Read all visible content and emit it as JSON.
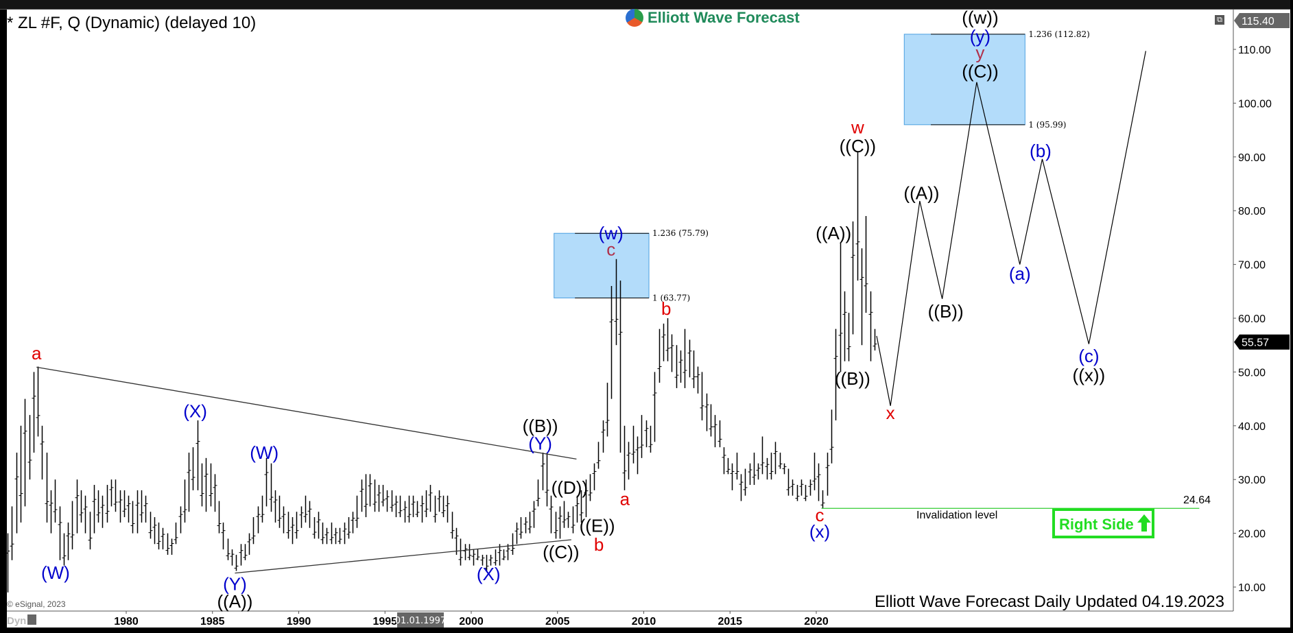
{
  "header": {
    "title": "* ZL #F, Q (Dynamic) (delayed 10)",
    "logo_text": "Elliott Wave Forecast"
  },
  "footer": {
    "copyright": "© eSignal, 2023",
    "dyn_label": "Dyn",
    "updated": "Elliott Wave Forecast Daily Updated 04.19.2023",
    "date_cursor": "01.01.1997"
  },
  "price_tags": {
    "top": "115.40",
    "last": "55.57"
  },
  "invalidation": {
    "label": "Invalidation level",
    "value_label": "24.64"
  },
  "right_side": {
    "label": "Right Side",
    "icon": "up-arrow-icon",
    "color": "#22dd22"
  },
  "colors": {
    "red": "#e00000",
    "blue": "#0000cc",
    "black": "#000000",
    "darkred": "#b0304a",
    "box": "#b3dcfa",
    "invalidation": "#33cc33"
  },
  "chart_data": {
    "type": "bar",
    "title": "* ZL #F, Q (Dynamic) (delayed 10)",
    "xlim": [
      1973,
      2042.5
    ],
    "ylim": [
      5.5,
      116.5
    ],
    "x_ticks": [
      "1980",
      "1985",
      "1990",
      "1995",
      "2000",
      "2005",
      "2010",
      "2015",
      "2020"
    ],
    "y_ticks": [
      "10.00",
      "20.00",
      "30.00",
      "40.00",
      "50.00",
      "60.00",
      "70.00",
      "80.00",
      "90.00",
      "100.00",
      "110.00"
    ],
    "quarterly_low_high": {
      "1973": [
        [
          9,
          20
        ],
        [
          15,
          25
        ],
        [
          20,
          35
        ],
        [
          22,
          40
        ]
      ],
      "1974": [
        [
          25,
          45
        ],
        [
          30,
          42
        ],
        [
          35,
          50
        ],
        [
          38,
          51
        ]
      ],
      "1975": [
        [
          30,
          40
        ],
        [
          22,
          35
        ],
        [
          20,
          28
        ],
        [
          22,
          30
        ]
      ],
      "1976": [
        [
          15,
          25
        ],
        [
          14,
          20
        ],
        [
          15,
          22
        ],
        [
          17,
          26
        ]
      ],
      "1977": [
        [
          20,
          30
        ],
        [
          22,
          28
        ],
        [
          20,
          27
        ],
        [
          17,
          24
        ]
      ],
      "1978": [
        [
          20,
          29
        ],
        [
          22,
          28
        ],
        [
          21,
          27
        ],
        [
          22,
          29
        ]
      ],
      "1979": [
        [
          25,
          30
        ],
        [
          24,
          30
        ],
        [
          22,
          28
        ],
        [
          23,
          28
        ]
      ],
      "1980": [
        [
          22,
          27
        ],
        [
          20,
          26
        ],
        [
          20,
          28
        ],
        [
          22,
          28
        ]
      ],
      "1981": [
        [
          22,
          27
        ],
        [
          19,
          24
        ],
        [
          18,
          23
        ],
        [
          17,
          22
        ]
      ],
      "1982": [
        [
          17,
          21
        ],
        [
          16,
          20
        ],
        [
          16,
          19
        ],
        [
          18,
          22
        ]
      ],
      "1983": [
        [
          20,
          25
        ],
        [
          22,
          30
        ],
        [
          24,
          35
        ],
        [
          28,
          36
        ]
      ],
      "1984": [
        [
          28,
          41
        ],
        [
          25,
          33
        ],
        [
          24,
          34
        ],
        [
          25,
          33
        ]
      ],
      "1985": [
        [
          24,
          31
        ],
        [
          20,
          26
        ],
        [
          17,
          22
        ],
        [
          15,
          19
        ]
      ],
      "1986": [
        [
          14,
          17
        ],
        [
          13,
          16
        ],
        [
          14,
          18
        ],
        [
          15,
          18
        ]
      ],
      "1987": [
        [
          16,
          20
        ],
        [
          18,
          23
        ],
        [
          20,
          25
        ],
        [
          22,
          27
        ]
      ],
      "1988": [
        [
          25,
          34
        ],
        [
          24,
          33
        ],
        [
          22,
          28
        ],
        [
          21,
          27
        ]
      ],
      "1989": [
        [
          20,
          25
        ],
        [
          19,
          24
        ],
        [
          18,
          23
        ],
        [
          19,
          24
        ]
      ],
      "1990": [
        [
          21,
          25
        ],
        [
          22,
          27
        ],
        [
          21,
          26
        ],
        [
          19,
          23
        ]
      ],
      "1991": [
        [
          19,
          24
        ],
        [
          18,
          22
        ],
        [
          18,
          21
        ],
        [
          18,
          22
        ]
      ],
      "1992": [
        [
          18,
          21
        ],
        [
          18,
          21
        ],
        [
          18,
          22
        ],
        [
          19,
          23
        ]
      ],
      "1993": [
        [
          20,
          24
        ],
        [
          21,
          27
        ],
        [
          24,
          30
        ],
        [
          23,
          31
        ]
      ],
      "1994": [
        [
          25,
          31
        ],
        [
          24,
          30
        ],
        [
          24,
          29
        ],
        [
          25,
          29
        ]
      ],
      "1995": [
        [
          24,
          28
        ],
        [
          24,
          28
        ],
        [
          23,
          27
        ],
        [
          23,
          27
        ]
      ],
      "1996": [
        [
          22,
          26
        ],
        [
          22,
          27
        ],
        [
          23,
          27
        ],
        [
          23,
          26
        ]
      ],
      "1997": [
        [
          22,
          27
        ],
        [
          23,
          28
        ],
        [
          24,
          29
        ],
        [
          22,
          27
        ]
      ],
      "1998": [
        [
          24,
          28
        ],
        [
          23,
          27
        ],
        [
          22,
          27
        ],
        [
          19,
          24
        ]
      ],
      "1999": [
        [
          16,
          21
        ],
        [
          14,
          19
        ],
        [
          15,
          18
        ],
        [
          15,
          18
        ]
      ],
      "2000": [
        [
          14,
          17
        ],
        [
          15,
          17
        ],
        [
          14,
          16
        ],
        [
          13,
          16
        ]
      ],
      "2001": [
        [
          14,
          16
        ],
        [
          14,
          17
        ],
        [
          14,
          18
        ],
        [
          15,
          17
        ]
      ],
      "2002": [
        [
          15,
          18
        ],
        [
          16,
          20
        ],
        [
          18,
          22
        ],
        [
          19,
          23
        ]
      ],
      "2003": [
        [
          20,
          23
        ],
        [
          20,
          24
        ],
        [
          21,
          26
        ],
        [
          25,
          30
        ]
      ],
      "2004": [
        [
          28,
          35
        ],
        [
          25,
          35
        ],
        [
          20,
          27
        ],
        [
          19,
          24
        ]
      ],
      "2005": [
        [
          19,
          25
        ],
        [
          21,
          26
        ],
        [
          21,
          24
        ],
        [
          20,
          25
        ]
      ],
      "2006": [
        [
          22,
          27
        ],
        [
          22,
          28
        ],
        [
          23,
          30
        ],
        [
          26,
          31
        ]
      ],
      "2007": [
        [
          28,
          33
        ],
        [
          32,
          37
        ],
        [
          35,
          41
        ],
        [
          38,
          48
        ]
      ],
      "2008": [
        [
          45,
          66
        ],
        [
          55,
          71
        ],
        [
          35,
          67
        ],
        [
          28,
          40
        ]
      ],
      "2009": [
        [
          30,
          37
        ],
        [
          33,
          40
        ],
        [
          31,
          38
        ],
        [
          34,
          42
        ]
      ],
      "2010": [
        [
          36,
          41
        ],
        [
          35,
          40
        ],
        [
          37,
          50
        ],
        [
          48,
          58
        ]
      ],
      "2011": [
        [
          52,
          59
        ],
        [
          52,
          60
        ],
        [
          50,
          57
        ],
        [
          47,
          55
        ]
      ],
      "2012": [
        [
          48,
          54
        ],
        [
          47,
          58
        ],
        [
          49,
          56
        ],
        [
          47,
          54
        ]
      ],
      "2013": [
        [
          46,
          51
        ],
        [
          41,
          50
        ],
        [
          39,
          46
        ],
        [
          38,
          44
        ]
      ],
      "2014": [
        [
          36,
          42
        ],
        [
          36,
          41
        ],
        [
          31,
          36
        ],
        [
          31,
          34
        ]
      ],
      "2015": [
        [
          28,
          33
        ],
        [
          30,
          35
        ],
        [
          26,
          31
        ],
        [
          27,
          32
        ]
      ],
      "2016": [
        [
          29,
          33
        ],
        [
          29,
          35
        ],
        [
          30,
          33
        ],
        [
          31,
          38
        ]
      ],
      "2017": [
        [
          30,
          34
        ],
        [
          30,
          35
        ],
        [
          31,
          37
        ],
        [
          32,
          35
        ]
      ],
      "2018": [
        [
          31,
          33
        ],
        [
          27,
          32
        ],
        [
          27,
          30
        ],
        [
          26,
          29
        ]
      ],
      "2019": [
        [
          27,
          30
        ],
        [
          26,
          29
        ],
        [
          27,
          30
        ],
        [
          28,
          35
        ]
      ],
      "2020": [
        [
          26,
          33
        ],
        [
          24.64,
          28
        ],
        [
          27,
          35
        ],
        [
          33,
          43
        ]
      ],
      "2021": [
        [
          41,
          58
        ],
        [
          50,
          74
        ],
        [
          52,
          65
        ],
        [
          52,
          61
        ]
      ],
      "2022": [
        [
          57,
          78
        ],
        [
          67,
          91
        ],
        [
          55,
          73
        ],
        [
          61,
          79
        ]
      ],
      "2023": [
        [
          52,
          65
        ],
        [
          54,
          58
        ]
      ]
    },
    "fib_boxes": [
      {
        "x": [
          2004.8,
          2010.3
        ],
        "low": 63.77,
        "high": 75.79,
        "low_label": "1 (63.77)",
        "high_label": "1.236 (75.79)"
      },
      {
        "x": [
          2025.1,
          2032.1
        ],
        "low": 95.99,
        "high": 112.82,
        "low_label": "1 (95.99)",
        "high_label": "1.236 (112.82)"
      }
    ],
    "trendlines": [
      {
        "points": [
          [
            1974.8,
            50.9
          ],
          [
            2006.1,
            33.8
          ]
        ]
      },
      {
        "points": [
          [
            1986.3,
            12.6
          ],
          [
            2005.8,
            18.8
          ]
        ]
      }
    ],
    "invalidation_line": {
      "x": [
        2020.3,
        2042.2
      ],
      "price": 24.64
    },
    "projection": [
      [
        2023.5,
        56.7
      ],
      [
        2024.3,
        43.7
      ],
      [
        2026.0,
        81.8
      ],
      [
        2027.3,
        63.6
      ],
      [
        2029.3,
        103.9
      ],
      [
        2031.8,
        70
      ],
      [
        2033.1,
        89.6
      ],
      [
        2035.8,
        55.2
      ],
      [
        2039.1,
        109.7
      ]
    ],
    "wave_labels": [
      {
        "text": "a",
        "color": "red",
        "x": 1974.8,
        "y": 53.5
      },
      {
        "text": "(W)",
        "color": "blue",
        "x": 1975.9,
        "y": 12.7
      },
      {
        "text": "(X)",
        "color": "blue",
        "x": 1984.0,
        "y": 42.7
      },
      {
        "text": "(W)",
        "color": "blue",
        "x": 1988.0,
        "y": 35.0
      },
      {
        "text": "(Y)",
        "color": "blue",
        "x": 1986.3,
        "y": 10.6
      },
      {
        "text": "((A))",
        "color": "black",
        "x": 1986.3,
        "y": 7.3
      },
      {
        "text": "(X)",
        "color": "blue",
        "x": 2001.0,
        "y": 12.4
      },
      {
        "text": "((B))",
        "color": "black",
        "x": 2004.0,
        "y": 40.0
      },
      {
        "text": "(Y)",
        "color": "blue",
        "x": 2004.0,
        "y": 36.7
      },
      {
        "text": "((D))",
        "color": "black",
        "x": 2005.7,
        "y": 28.5
      },
      {
        "text": "((C))",
        "color": "black",
        "x": 2005.2,
        "y": 16.5
      },
      {
        "text": "((E))",
        "color": "black",
        "x": 2007.3,
        "y": 21.4
      },
      {
        "text": "b",
        "color": "red",
        "x": 2007.4,
        "y": 17.9
      },
      {
        "text": "a",
        "color": "red",
        "x": 2008.9,
        "y": 26.4
      },
      {
        "text": "(w)",
        "color": "blue",
        "x": 2008.1,
        "y": 75.8
      },
      {
        "text": "c",
        "color": "darkred",
        "x": 2008.1,
        "y": 72.8
      },
      {
        "text": "b",
        "color": "red",
        "x": 2011.3,
        "y": 61.8
      },
      {
        "text": "c",
        "color": "red",
        "x": 2020.2,
        "y": 23.4
      },
      {
        "text": "(x)",
        "color": "blue",
        "x": 2020.2,
        "y": 20.3
      },
      {
        "text": "((A))",
        "color": "black",
        "x": 2021.0,
        "y": 75.8
      },
      {
        "text": "((B))",
        "color": "black",
        "x": 2022.1,
        "y": 48.8
      },
      {
        "text": "w",
        "color": "red",
        "x": 2022.4,
        "y": 95.5
      },
      {
        "text": "((C))",
        "color": "black",
        "x": 2022.4,
        "y": 92.0
      },
      {
        "text": "x",
        "color": "red",
        "x": 2024.3,
        "y": 42.4
      },
      {
        "text": "((A))",
        "color": "black",
        "x": 2026.1,
        "y": 83.3
      },
      {
        "text": "((B))",
        "color": "black",
        "x": 2027.5,
        "y": 61.3
      },
      {
        "text": "((w))",
        "color": "black",
        "x": 2029.5,
        "y": 115.9
      },
      {
        "text": "(y)",
        "color": "blue",
        "x": 2029.5,
        "y": 112.4
      },
      {
        "text": "y",
        "color": "darkred",
        "x": 2029.5,
        "y": 109.4
      },
      {
        "text": "((C))",
        "color": "black",
        "x": 2029.5,
        "y": 105.9
      },
      {
        "text": "(a)",
        "color": "blue",
        "x": 2031.8,
        "y": 68.3
      },
      {
        "text": "(b)",
        "color": "blue",
        "x": 2033.0,
        "y": 91.1
      },
      {
        "text": "(c)",
        "color": "blue",
        "x": 2035.8,
        "y": 53.0
      },
      {
        "text": "((x))",
        "color": "black",
        "x": 2035.8,
        "y": 49.4
      }
    ]
  }
}
